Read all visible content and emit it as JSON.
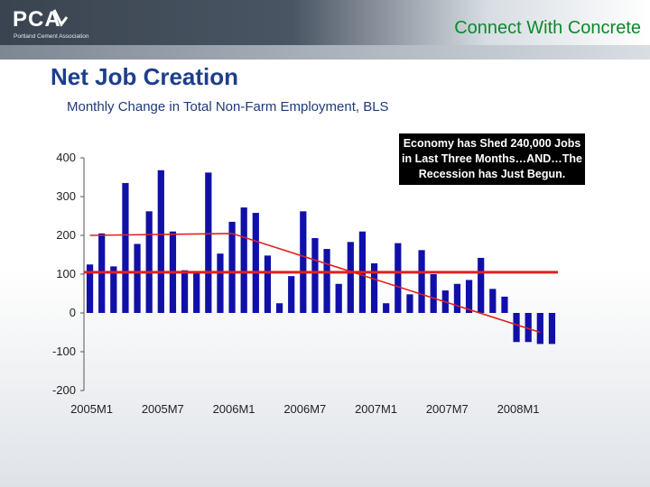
{
  "header": {
    "logo_text": "PCA",
    "logo_subtext": "Portland Cement Association",
    "tagline": "Connect With Concrete"
  },
  "slide": {
    "title": "Net Job Creation",
    "subtitle": "Monthly Change in Total Non-Farm Employment, BLS",
    "callout": "Economy has Shed 240,000 Jobs in Last Three Months…AND…The Recession has Just Begun."
  },
  "colors": {
    "bar": "#1010a8",
    "trend": "#e02020",
    "average": "#e02020",
    "title": "#1c3f8c",
    "tagline": "#0a8a2a"
  },
  "chart_data": {
    "type": "bar",
    "ylim": [
      -200,
      400
    ],
    "yticks": [
      400,
      300,
      200,
      100,
      0,
      -100,
      -200
    ],
    "x_tick_labels": [
      "2005M1",
      "2005M7",
      "2006M1",
      "2006M7",
      "2007M1",
      "2007M7",
      "2008M1"
    ],
    "x_tick_index": [
      0,
      6,
      12,
      18,
      24,
      30,
      36
    ],
    "categories": [
      "2005M1",
      "2005M2",
      "2005M3",
      "2005M4",
      "2005M5",
      "2005M6",
      "2005M7",
      "2005M8",
      "2005M9",
      "2005M10",
      "2005M11",
      "2005M12",
      "2006M1",
      "2006M2",
      "2006M3",
      "2006M4",
      "2006M5",
      "2006M6",
      "2006M7",
      "2006M8",
      "2006M9",
      "2006M10",
      "2006M11",
      "2006M12",
      "2007M1",
      "2007M2",
      "2007M3",
      "2007M4",
      "2007M5",
      "2007M6",
      "2007M7",
      "2007M8",
      "2007M9",
      "2007M10",
      "2007M11",
      "2007M12",
      "2008M1",
      "2008M2",
      "2008M3",
      "2008M4"
    ],
    "values": [
      125,
      205,
      120,
      335,
      178,
      262,
      368,
      210,
      110,
      105,
      362,
      153,
      235,
      272,
      258,
      148,
      25,
      95,
      262,
      193,
      165,
      75,
      183,
      210,
      128,
      25,
      180,
      48,
      162,
      100,
      58,
      75,
      85,
      142,
      62,
      42,
      -75,
      -75,
      -80,
      -80
    ],
    "trend_line": {
      "start": [
        0,
        200
      ],
      "mid": [
        12,
        205
      ],
      "end": [
        38,
        -50
      ]
    },
    "average_line": 105,
    "grid": false
  }
}
